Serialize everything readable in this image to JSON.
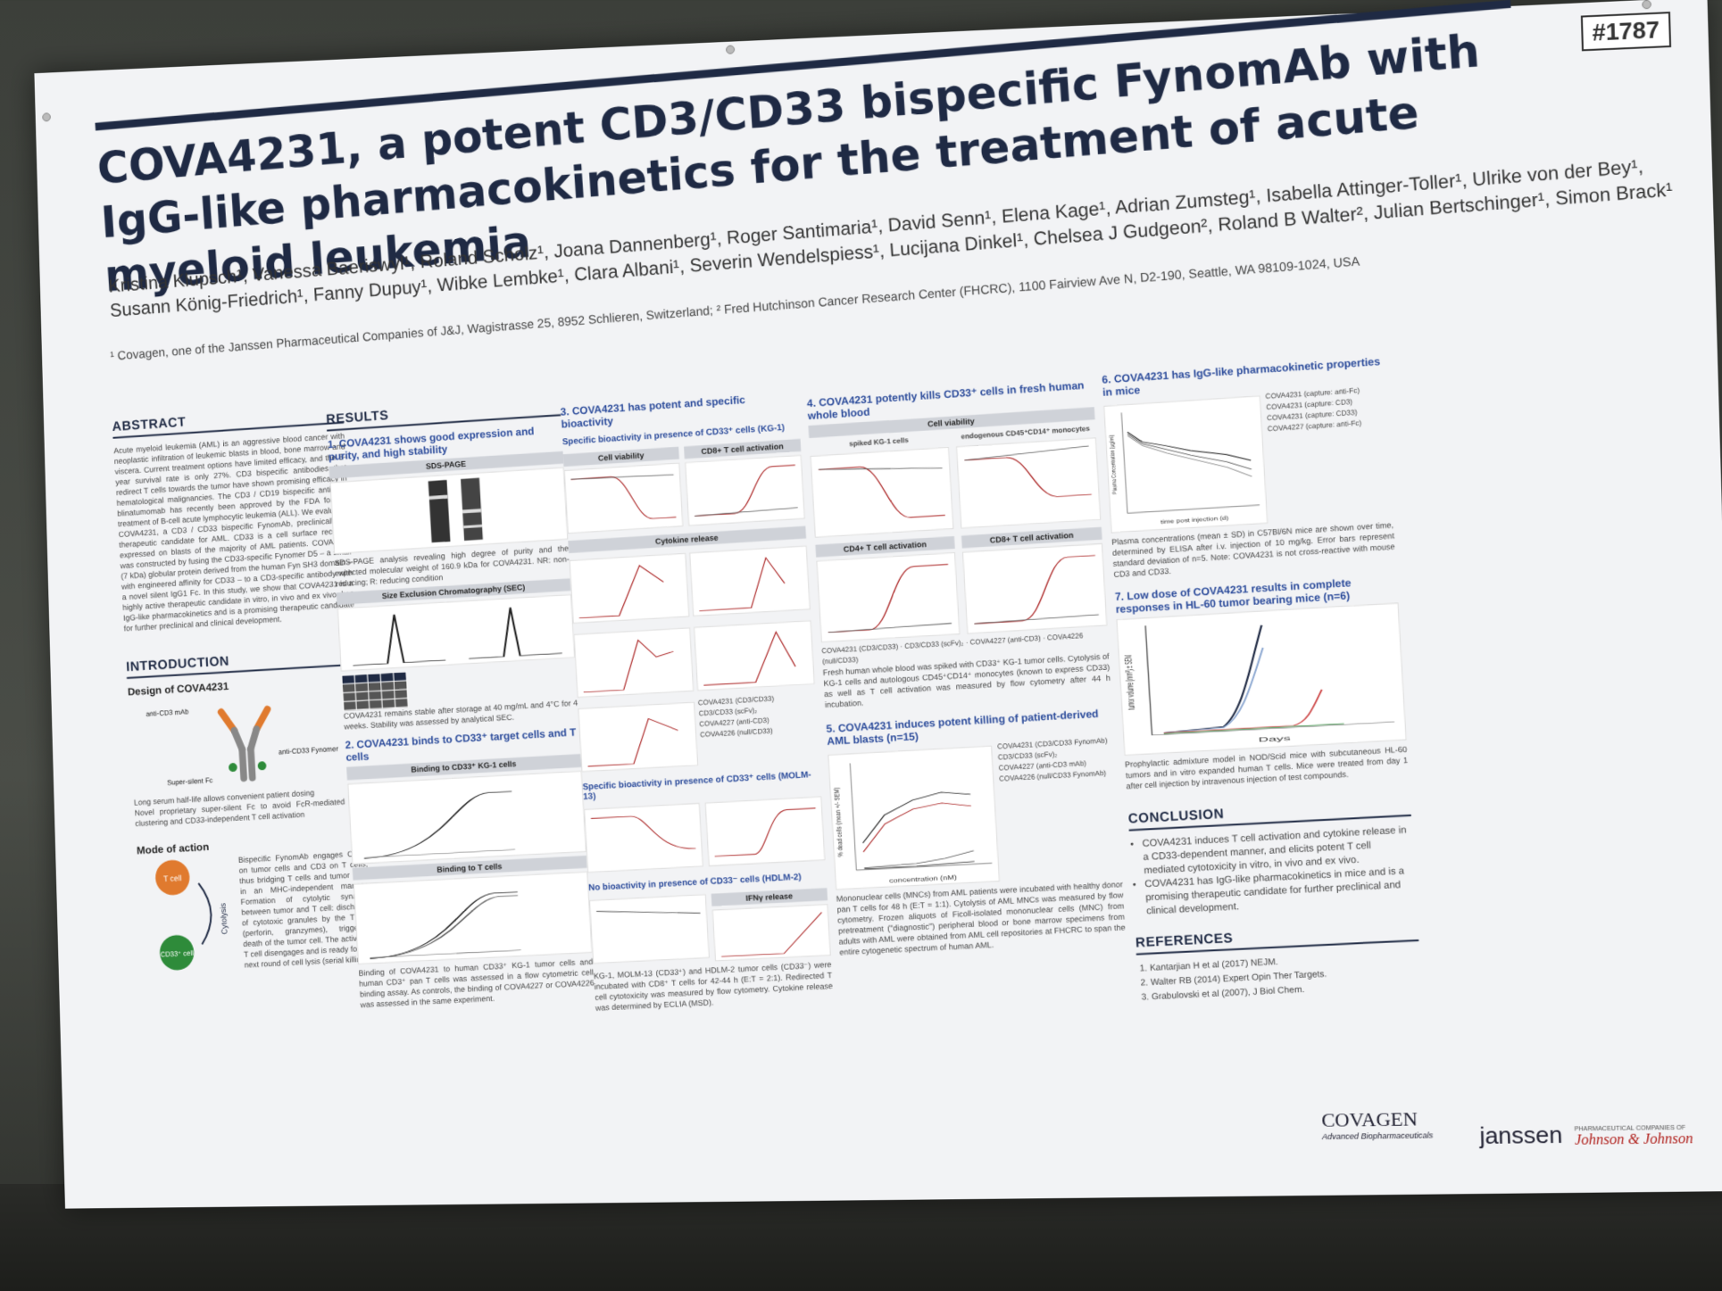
{
  "poster": {
    "id": "#1787",
    "title": "COVA4231, a potent CD3/CD33 bispecific FynomAb with IgG-like pharmacokinetics for the treatment of acute myeloid leukemia",
    "authors": "Kristina Klupsch¹, Vanessa Baeriswyl¹, Roland Scholz¹, Joana Dannenberg¹, Roger Santimaria¹, David Senn¹, Elena Kage¹, Adrian Zumsteg¹, Isabella Attinger-Toller¹, Ulrike von der Bey¹, Susann König-Friedrich¹, Fanny Dupuy¹, Wibke Lembke¹, Clara Albani¹, Severin Wendelspiess¹, Lucijana Dinkel¹, Chelsea J Gudgeon², Roland B Walter², Julian Bertschinger¹, Simon Brack¹",
    "affiliations": "¹ Covagen, one of the Janssen Pharmaceutical Companies of J&J, Wagistrasse 25, 8952 Schlieren, Switzerland;  ² Fred Hutchinson Cancer Research Center (FHCRC), 1100 Fairview Ave N, D2-190, Seattle, WA 98109-1024, USA"
  },
  "abstract": {
    "heading": "ABSTRACT",
    "text": "Acute myeloid leukemia (AML) is an aggressive blood cancer with neoplastic infiltration of leukemic blasts in blood, bone marrow and viscera. Current treatment options have limited efficacy, and the 5-year survival rate is only 27%. CD3 bispecific antibodies that redirect T cells towards the tumor have shown promising efficacy in hematological malignancies. The CD3 / CD19 bispecific antibody blinatumomab has recently been approved by the FDA for the treatment of B-cell acute lymphocytic leukemia (ALL). We evaluated COVA4231, a CD3 / CD33 bispecific FynomAb, preclinically as therapeutic candidate for AML. CD33 is a cell surface receptor expressed on blasts of the majority of AML patients. COVA4231 was constructed by fusing the CD33-specific Fynomer D5 – a small (7 kDa) globular protein derived from the human Fyn SH3 domain – with engineered affinity for CD33 – to a CD3-specific antibody with a novel silent IgG1 Fc. In this study, we show that COVA4231 is a highly active therapeutic candidate in vitro, in vivo and ex vivo, has IgG-like pharmacokinetics and is a promising therapeutic candidate for further preclinical and clinical development."
  },
  "introduction": {
    "heading": "INTRODUCTION",
    "design_heading": "Design of COVA4231",
    "label_anti_cd3": "anti-CD3 mAb",
    "label_anti_cd33": "anti-CD33 Fynomer",
    "label_fc": "Super-silent Fc",
    "bullet1": "Long serum half-life allows convenient patient dosing",
    "bullet2": "Novel proprietary super-silent Fc to avoid FcR-mediated CD3 clustering and CD33-independent T cell activation",
    "moa_heading": "Mode of action",
    "t_cell": "T cell",
    "cd33_cell": "CD33⁺ cell",
    "cytolysis": "Cytolysis",
    "moa_text": "Bispecific FynomAb engages CD33 on tumor cells and CD3 on T cells, thus bridging T cells and tumor cells in an MHC-independent manner. Formation of cytolytic synapse between tumor and T cell: discharge of cytotoxic granules by the T cell (perforin, granzymes), triggering death of the tumor cell. The activated T cell disengages and is ready for the next round of cell lysis (serial killing)."
  },
  "results": {
    "heading": "RESULTS",
    "s1_heading": "1. COVA4231 shows good expression and purity, and high stability",
    "sds_page": "SDS-PAGE",
    "sds_caption": "SDS-PAGE analysis revealing high degree of purity and the expected molecular weight of 160.9 kDa for COVA4231. NR: non-reducing; R: reducing condition",
    "sec_heading": "Size Exclusion Chromatography (SEC)",
    "sec_caption": "COVA4231 remains stable after storage at 40 mg/mL and 4°C for 4 weeks. Stability was assessed by analytical SEC.",
    "s2_heading": "2. COVA4231 binds to CD33⁺ target cells and T cells",
    "bind_kg1": "Binding to CD33⁺ KG-1 cells",
    "bind_t": "Binding to T cells",
    "bind_caption": "Binding of COVA4231 to human CD33⁺ KG-1 tumor cells and human CD3⁺ pan T cells was assessed in a flow cytometric cell binding assay. As controls, the binding of COVA4227 or COVA4226 was assessed in the same experiment."
  },
  "section3": {
    "heading": "3. COVA4231 has potent and specific bioactivity",
    "kg1": "Specific bioactivity in presence of CD33⁺ cells (KG-1)",
    "cell_viability": "Cell viability",
    "cd8_activation": "CD8+ T cell activation",
    "cytokine": "Cytokine release",
    "molm": "Specific bioactivity in presence of CD33⁺ cells (MOLM-13)",
    "hdlm": "No bioactivity in presence of CD33⁻ cells (HDLM-2)",
    "ifn_release": "IFNγ release",
    "legend": [
      "COVA4231 (CD3/CD33)",
      "CD3/CD33 (scFv)₂",
      "COVA4227 (anti-CD3)",
      "COVA4226 (null/CD33)"
    ],
    "caption": "KG-1, MOLM-13 (CD33⁺) and HDLM-2 tumor cells (CD33⁻) were incubated with CD8⁺ T cells for 42-44 h (E:T = 2:1). Redirected T cell cytotoxicity was measured by flow cytometry. Cytokine release was determined by ECLIA (MSD)."
  },
  "section4": {
    "heading": "4. COVA4231 potently kills CD33⁺ cells in fresh human whole blood",
    "cell_viability": "Cell viability",
    "kg1": "spiked KG-1 cells",
    "mono": "endogenous CD45⁺CD14⁺ monocytes",
    "cd4": "CD4+ T cell activation",
    "cd8": "CD8+ T cell activation",
    "caption": "Fresh human whole blood was spiked with CD33⁺ KG-1 tumor cells. Cytolysis of KG-1 cells and autologous CD45⁺CD14⁺ monocytes (known to express CD33) as well as T cell activation was measured by flow cytometry after 44 h incubation."
  },
  "section5": {
    "heading": "5. COVA4231 induces potent killing of patient-derived AML blasts (n=15)",
    "ylabel": "% dead cells (mean +/- SEM)",
    "xlabel": "concentration (nM)",
    "legend": [
      "COVA4231 (CD3/CD33 FynomAb)",
      "CD3/CD33 (scFv)₂",
      "COVA4227 (anti-CD3 mAb)",
      "COVA4226 (null/CD33 FynomAb)"
    ],
    "caption": "Mononuclear cells (MNCs) from AML patients were incubated with healthy donor pan T cells for 48 h (E:T = 1:1). Cytolysis of AML MNCs was measured by flow cytometry. Frozen aliquots of Ficoll-isolated mononuclear cells (MNC) from pretreatment (\"diagnostic\") peripheral blood or bone marrow specimens from adults with AML were obtained from AML cell repositories at FHCRC to span the entire cytogenetic spectrum of human AML."
  },
  "section6": {
    "heading": "6. COVA4231 has IgG-like pharmacokinetic properties in mice",
    "ylabel": "Plasma Concentration (µg/ml)",
    "xlabel": "time post injection (d)",
    "legend": [
      "COVA4231 (capture: anti-Fc)",
      "COVA4231 (capture: CD3)",
      "COVA4231 (capture: CD33)",
      "COVA4227 (capture: anti-Fc)"
    ],
    "caption": "Plasma concentrations (mean ± SD) in C57Bl/6N mice are shown over time, determined by ELISA after i.v. injection of 10 mg/kg. Error bars represent standard deviation of n=5. Note: COVA4231 is not cross-reactive with mouse CD3 and CD33."
  },
  "section7": {
    "heading": "7. Low dose of COVA4231 results in complete responses in HL-60 tumor bearing mice (n=6)",
    "ylabel": "tumor volume (mm³) ± SEM",
    "xlabel": "Days",
    "caption": "Prophylactic admixture model in NOD/Scid mice with subcutaneous HL-60 tumors and in vitro expanded human T cells. Mice were treated from day 1 after cell injection by intravenous injection of test compounds."
  },
  "conclusion": {
    "heading": "CONCLUSION",
    "items": [
      "COVA4231 induces T cell activation and cytokine release in a CD33-dependent manner, and elicits potent T cell mediated cytotoxicity in vitro, in vivo and ex vivo.",
      "COVA4231 has IgG-like pharmacokinetics in mice and is a promising therapeutic candidate for further preclinical and clinical development."
    ]
  },
  "references": {
    "heading": "REFERENCES",
    "items": [
      "Kantarjian H et al (2017) NEJM.",
      "Walter RB (2014) Expert Opin Ther Targets.",
      "Grabulovski et al (2007), J Biol Chem."
    ]
  },
  "logos": {
    "covagen": "COVAGEN",
    "covagen_sub": "Advanced Biopharmaceuticals",
    "janssen": "janssen",
    "jj_sub": "PHARMACEUTICAL COMPANIES OF",
    "jj": "Johnson & Johnson"
  }
}
